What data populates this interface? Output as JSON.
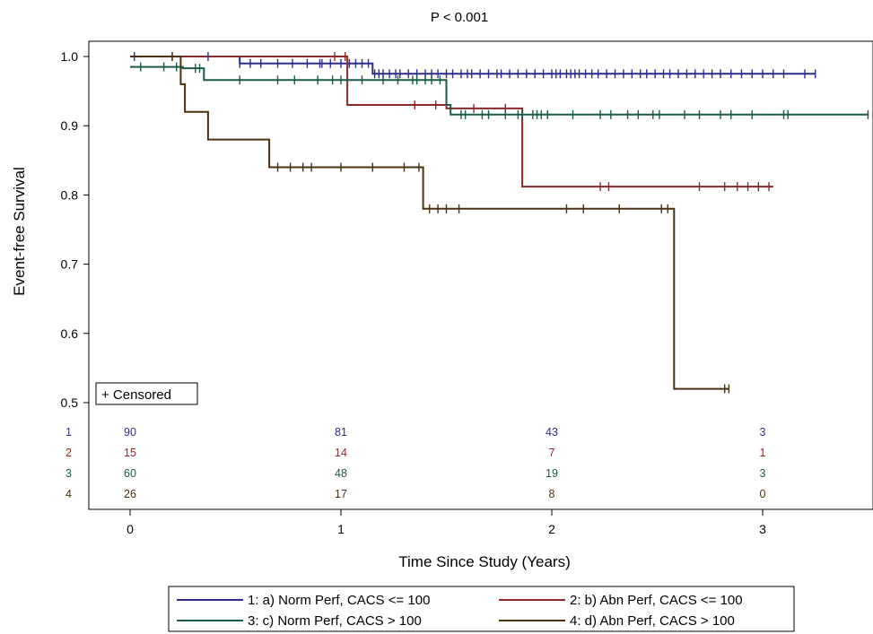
{
  "chart_data": {
    "type": "line",
    "title": "P < 0.001",
    "xlabel": "Time Since Study (Years)",
    "ylabel": "Event-free Survival",
    "xlim": [
      0,
      3.5
    ],
    "ylim": [
      0.5,
      1.0
    ],
    "xticks": [
      0,
      1,
      2,
      3
    ],
    "yticks": [
      0.5,
      0.6,
      0.7,
      0.8,
      0.9,
      1.0
    ],
    "xtick_labels": [
      "0",
      "1",
      "2",
      "3"
    ],
    "ytick_labels": [
      "0.5",
      "0.6",
      "0.7",
      "0.8",
      "0.9",
      "1.0"
    ],
    "grid": false,
    "censor_legend": "+ Censored",
    "series": [
      {
        "id": "1",
        "name": "1: a) Norm Perf, CACS <= 100",
        "color": "#2e2e8a",
        "steps": [
          [
            0,
            1.0
          ],
          [
            0.52,
            0.99
          ],
          [
            1.15,
            0.975
          ],
          [
            3.25,
            0.975
          ]
        ],
        "censored": [
          0.02,
          0.37,
          0.52,
          0.57,
          0.62,
          0.7,
          0.77,
          0.84,
          0.9,
          0.91,
          0.95,
          1.0,
          1.04,
          1.07,
          1.1,
          1.13,
          1.16,
          1.18,
          1.2,
          1.23,
          1.26,
          1.28,
          1.32,
          1.36,
          1.4,
          1.43,
          1.46,
          1.5,
          1.53,
          1.57,
          1.6,
          1.62,
          1.66,
          1.7,
          1.74,
          1.76,
          1.8,
          1.84,
          1.88,
          1.92,
          1.96,
          2.0,
          2.02,
          2.04,
          2.07,
          2.09,
          2.11,
          2.13,
          2.16,
          2.19,
          2.22,
          2.26,
          2.3,
          2.34,
          2.38,
          2.42,
          2.45,
          2.49,
          2.53,
          2.56,
          2.6,
          2.64,
          2.68,
          2.72,
          2.76,
          2.8,
          2.85,
          2.9,
          2.95,
          3.0,
          3.05,
          3.1,
          3.2,
          3.25
        ]
      },
      {
        "id": "2",
        "name": "2: b) Abn  Perf, CACS <= 100",
        "color": "#8b2a2a",
        "steps": [
          [
            0,
            1.0
          ],
          [
            1.03,
            0.93
          ],
          [
            1.5,
            0.925
          ],
          [
            1.86,
            0.812
          ],
          [
            3.05,
            0.812
          ]
        ],
        "censored": [
          0.2,
          0.97,
          1.02,
          1.35,
          1.45,
          1.63,
          1.78,
          2.23,
          2.27,
          2.7,
          2.82,
          2.88,
          2.93,
          2.98,
          3.03
        ]
      },
      {
        "id": "3",
        "name": "3: c) Norm Perf, CACS  > 100",
        "color": "#1a5a4a",
        "steps": [
          [
            0,
            0.985
          ],
          [
            0.25,
            0.983
          ],
          [
            0.35,
            0.966
          ],
          [
            1.33,
            0.966
          ],
          [
            1.5,
            0.93
          ],
          [
            1.52,
            0.916
          ],
          [
            3.5,
            0.916
          ]
        ],
        "censored": [
          0.05,
          0.16,
          0.22,
          0.31,
          0.33,
          0.52,
          0.7,
          0.78,
          0.89,
          0.96,
          1.0,
          1.1,
          1.2,
          1.27,
          1.34,
          1.36,
          1.4,
          1.43,
          1.47,
          1.57,
          1.59,
          1.67,
          1.7,
          1.78,
          1.84,
          1.86,
          1.91,
          1.93,
          1.95,
          1.98,
          2.1,
          2.23,
          2.28,
          2.36,
          2.41,
          2.48,
          2.51,
          2.63,
          2.7,
          2.8,
          2.85,
          2.95,
          3.1,
          3.12,
          3.5
        ]
      },
      {
        "id": "4",
        "name": "4: d) Abn  Perf, CACS  > 100",
        "color": "#4a3210",
        "steps": [
          [
            0,
            1.0
          ],
          [
            0.24,
            0.96
          ],
          [
            0.26,
            0.92
          ],
          [
            0.37,
            0.88
          ],
          [
            0.66,
            0.84
          ],
          [
            1.39,
            0.78
          ],
          [
            2.58,
            0.78
          ],
          [
            2.58,
            0.52
          ],
          [
            2.84,
            0.52
          ]
        ],
        "censored": [
          0.2,
          0.7,
          0.76,
          0.82,
          0.86,
          1.0,
          1.15,
          1.3,
          1.37,
          1.42,
          1.46,
          1.5,
          1.56,
          2.07,
          2.15,
          2.32,
          2.52,
          2.55,
          2.82,
          2.84
        ]
      }
    ],
    "number_at_risk": {
      "times": [
        0,
        1,
        2,
        3
      ],
      "rows": [
        {
          "label": "1",
          "color": "#2e2e8a",
          "values": [
            "90",
            "81",
            "43",
            "3"
          ]
        },
        {
          "label": "2",
          "color": "#8b2a2a",
          "values": [
            "15",
            "14",
            "7",
            "1"
          ]
        },
        {
          "label": "3",
          "color": "#1a5a4a",
          "values": [
            "60",
            "48",
            "19",
            "3"
          ]
        },
        {
          "label": "4",
          "color": "#4a3210",
          "values": [
            "26",
            "17",
            "8",
            "0"
          ]
        }
      ]
    },
    "legend_placement": "bottom"
  }
}
